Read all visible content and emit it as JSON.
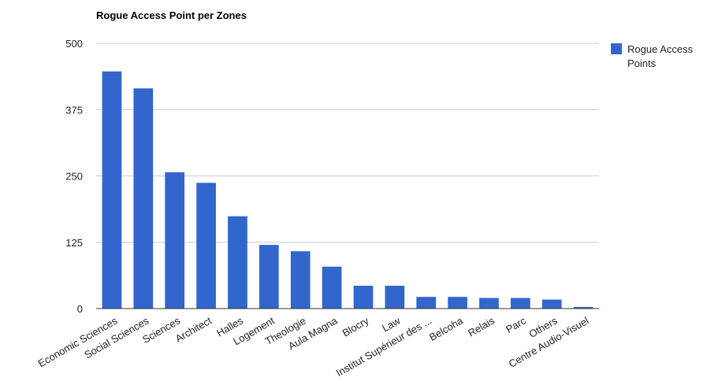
{
  "chart_data": {
    "type": "bar",
    "title": "Rogue Access Point per Zones",
    "xlabel": "",
    "ylabel": "",
    "categories": [
      "Economic Sciences",
      "Social Sciences",
      "Sciences",
      "Architect",
      "Halles",
      "Logement",
      "Theologie",
      "Aula Magna",
      "Blocry",
      "Law",
      "Institut Supérieur des ...",
      "Belcoha",
      "Relais",
      "Parc",
      "Others",
      "Centre Audio-Visuel"
    ],
    "series": [
      {
        "name": "Rogue Access Points",
        "values": [
          447,
          415,
          257,
          237,
          174,
          120,
          108,
          79,
          43,
          43,
          22,
          22,
          20,
          20,
          17,
          3
        ]
      }
    ],
    "ylim": [
      0,
      500
    ],
    "yticks": [
      0,
      125,
      250,
      375,
      500
    ],
    "grid": true,
    "legend": "right",
    "colors": {
      "bar": "#3366cc",
      "grid": "#cccccc",
      "axis": "#333333"
    }
  }
}
